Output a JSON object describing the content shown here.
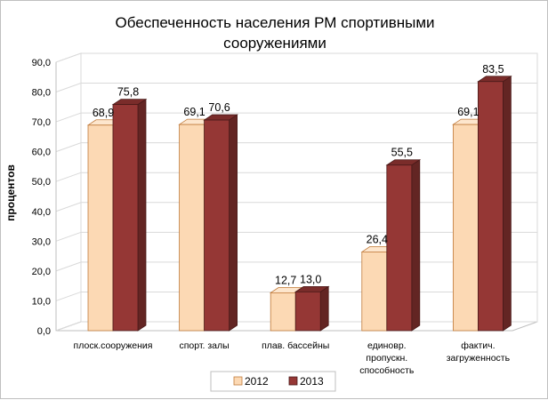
{
  "chart_data": {
    "type": "bar",
    "title_lines": [
      "Обеспеченность населения РМ спортивными",
      "сооружениями"
    ],
    "ylabel": "процентов",
    "xlabel": "",
    "ylim": [
      0,
      90
    ],
    "y_ticks": [
      "0,0",
      "10,0",
      "20,0",
      "30,0",
      "40,0",
      "50,0",
      "60,0",
      "70,0",
      "80,0",
      "90,0"
    ],
    "categories": [
      [
        "плоск.сооружения"
      ],
      [
        "спорт. залы"
      ],
      [
        "плав. бассейны"
      ],
      [
        "единовр.",
        "пропускн.",
        "способность"
      ],
      [
        "фактич.",
        "загруженность"
      ]
    ],
    "series": [
      {
        "name": "2012",
        "values": [
          68.9,
          69.1,
          12.7,
          26.4,
          69.1
        ],
        "labels": [
          "68,9",
          "69,1",
          "12,7",
          "26,4",
          "69,1"
        ],
        "color_front": "#fcd9b4",
        "color_side": "#e8b88a",
        "color_top": "#fde6cd",
        "color_edge": "#c07a3a"
      },
      {
        "name": "2013",
        "values": [
          75.8,
          70.6,
          13.0,
          55.5,
          83.5
        ],
        "labels": [
          "75,8",
          "70,6",
          "13,0",
          "55,5",
          "83,5"
        ],
        "color_front": "#953735",
        "color_side": "#632523",
        "color_top": "#7a2c2a",
        "color_edge": "#4a1a19"
      }
    ],
    "grid": true,
    "legend_position": "bottom"
  }
}
